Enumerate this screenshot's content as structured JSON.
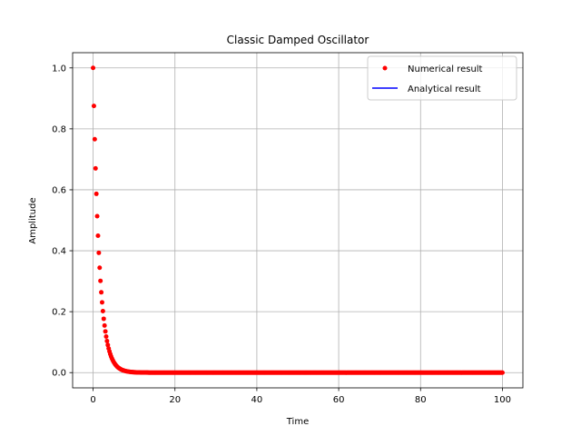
{
  "chart_data": {
    "type": "scatter",
    "title": "Classic Damped Oscillator",
    "xlabel": "Time",
    "ylabel": "Amplitude",
    "xlim": [
      -5,
      105
    ],
    "ylim": [
      -0.05,
      1.05
    ],
    "xticks": [
      0,
      20,
      40,
      60,
      80,
      100
    ],
    "yticks": [
      0.0,
      0.2,
      0.4,
      0.6,
      0.8,
      1.0
    ],
    "xtick_labels": [
      "0",
      "20",
      "40",
      "60",
      "80",
      "100"
    ],
    "ytick_labels": [
      "0.0",
      "0.2",
      "0.4",
      "0.6",
      "0.8",
      "1.0"
    ],
    "grid": true,
    "legend_position": "top-right",
    "series": [
      {
        "name": "Numerical result",
        "style": "markers",
        "color": "#ff0000",
        "model": "exponential decay y = exp(-t/1.5), sampled every 0.2 from 0 to 100",
        "t_start": 0,
        "t_end": 100,
        "t_step": 0.2,
        "decay_time": 1.5,
        "amplitude": 1.0
      },
      {
        "name": "Analytical result",
        "style": "line",
        "color": "#0000ff",
        "x": [],
        "y": []
      }
    ]
  }
}
